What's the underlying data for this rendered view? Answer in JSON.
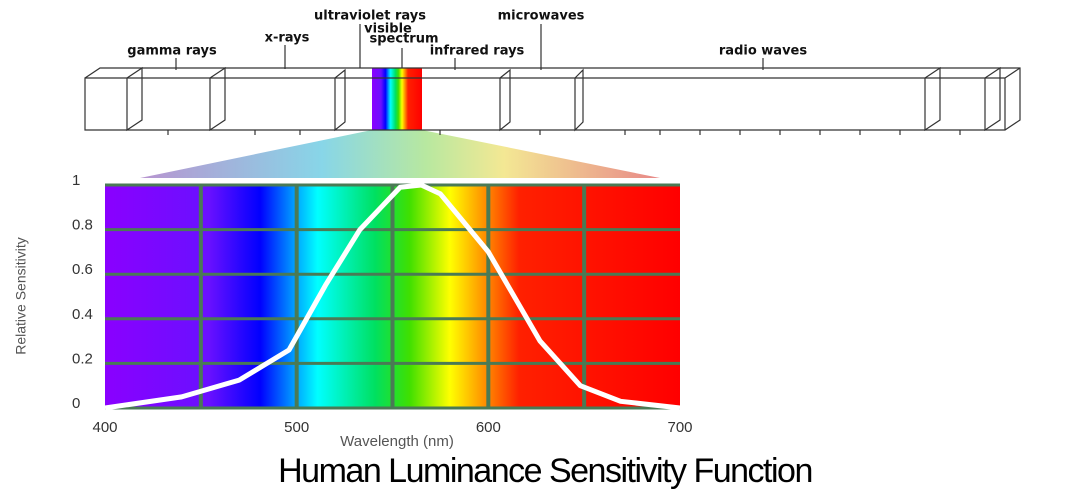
{
  "chart_data": {
    "type": "line",
    "title": "Human Luminance Sensitivity Function",
    "x_label": "Wavelength (nm)",
    "y_label": "Relative Sensitivity",
    "spectrum_labels": [
      "gamma rays",
      "x-rays",
      "ultraviolet rays",
      "visible",
      "spectrum",
      "infrared rays",
      "microwaves",
      "radio waves"
    ],
    "x": [
      400,
      440,
      470,
      496,
      515,
      533,
      554,
      565,
      575,
      600,
      627,
      648,
      669,
      700
    ],
    "series": [
      {
        "name": "Relative Sensitivity",
        "color": "#ffffff",
        "values": [
          0,
          0.05,
          0.125,
          0.26,
          0.55,
          0.8,
          0.99,
          1,
          0.96,
          0.7,
          0.3,
          0.1,
          0.03,
          0
        ]
      }
    ],
    "xlim": [
      400,
      700
    ],
    "ylim": [
      0,
      1
    ],
    "xticks": [
      400,
      500,
      600,
      700
    ],
    "yticks": [
      0,
      0.2,
      0.4,
      0.6,
      0.8,
      1
    ],
    "xgrid": [
      450,
      500,
      550,
      600,
      650
    ],
    "grid": true,
    "grid_color": "#4a7a55"
  }
}
